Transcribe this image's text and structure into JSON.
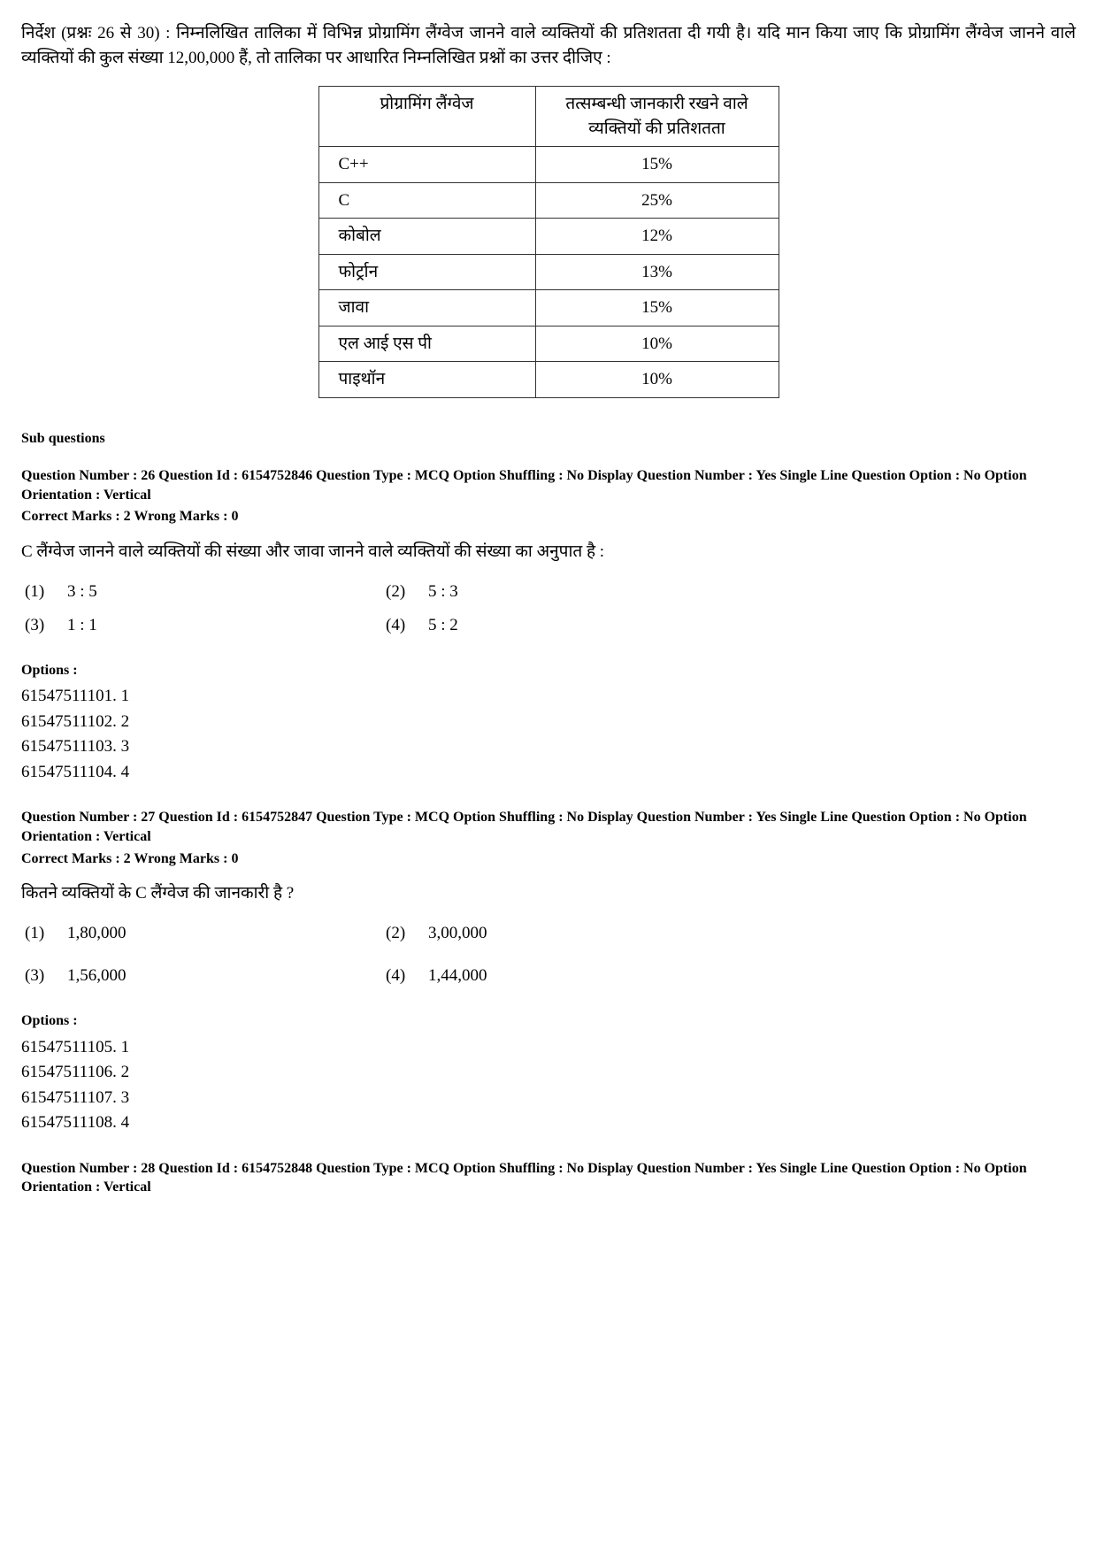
{
  "directions": "निर्देश (प्रश्नः 26 से 30) : निम्नलिखित तालिका में विभिन्न प्रोग्रामिंग लैंग्वेज जानने वाले व्यक्तियों की प्रतिशतता दी गयी है। यदि मान किया जाए कि प्रोग्रामिंग लैंग्वेज जानने वाले व्यक्तियों की कुल संख्या 12,00,000 हैं, तो तालिका पर आधारित निम्नलिखित प्रश्नों का उत्तर दीजिए :",
  "table": {
    "columns": [
      "प्रोग्रामिंग लैंग्वेज",
      "तत्सम्बन्धी जानकारी रखने वाले व्यक्तियों की प्रतिशतता"
    ],
    "rows": [
      [
        "C++",
        "15%"
      ],
      [
        "C",
        "25%"
      ],
      [
        "कोबोल",
        "12%"
      ],
      [
        "फोर्ट्रान",
        "13%"
      ],
      [
        "जावा",
        "15%"
      ],
      [
        "एल आई एस पी",
        "10%"
      ],
      [
        "पाइथॉन",
        "10%"
      ]
    ],
    "border_color": "#333333",
    "cell_fontsize": 19
  },
  "sub_heading": "Sub questions",
  "q26": {
    "meta": "Question Number : 26  Question Id : 6154752846  Question Type : MCQ  Option Shuffling : No  Display Question Number : Yes Single Line Question Option : No  Option Orientation : Vertical",
    "marks": "Correct Marks : 2  Wrong Marks : 0",
    "text": "C लैंग्वेज जानने वाले व्यक्तियों की संख्या और जावा जानने वाले व्यक्तियों की संख्या का अनुपात है :",
    "answers": {
      "n1": "(1)",
      "v1": "3 : 5",
      "n2": "(2)",
      "v2": "5 : 3",
      "n3": "(3)",
      "v3": "1 : 1",
      "n4": "(4)",
      "v4": "5 : 2"
    },
    "options_label": "Options :",
    "options": {
      "o1": "61547511101. 1",
      "o2": "61547511102. 2",
      "o3": "61547511103. 3",
      "o4": "61547511104. 4"
    }
  },
  "q27": {
    "meta": "Question Number : 27  Question Id : 6154752847  Question Type : MCQ  Option Shuffling : No  Display Question Number : Yes Single Line Question Option : No  Option Orientation : Vertical",
    "marks": "Correct Marks : 2  Wrong Marks : 0",
    "text": "कितने व्यक्तियों के C लैंग्वेज की जानकारी है ?",
    "answers": {
      "n1": "(1)",
      "v1": "1,80,000",
      "n2": "(2)",
      "v2": "3,00,000",
      "n3": "(3)",
      "v3": "1,56,000",
      "n4": "(4)",
      "v4": "1,44,000"
    },
    "options_label": "Options :",
    "options": {
      "o1": "61547511105. 1",
      "o2": "61547511106. 2",
      "o3": "61547511107. 3",
      "o4": "61547511108. 4"
    }
  },
  "q28": {
    "meta": "Question Number : 28  Question Id : 6154752848  Question Type : MCQ  Option Shuffling : No  Display Question Number : Yes Single Line Question Option : No  Option Orientation : Vertical"
  }
}
